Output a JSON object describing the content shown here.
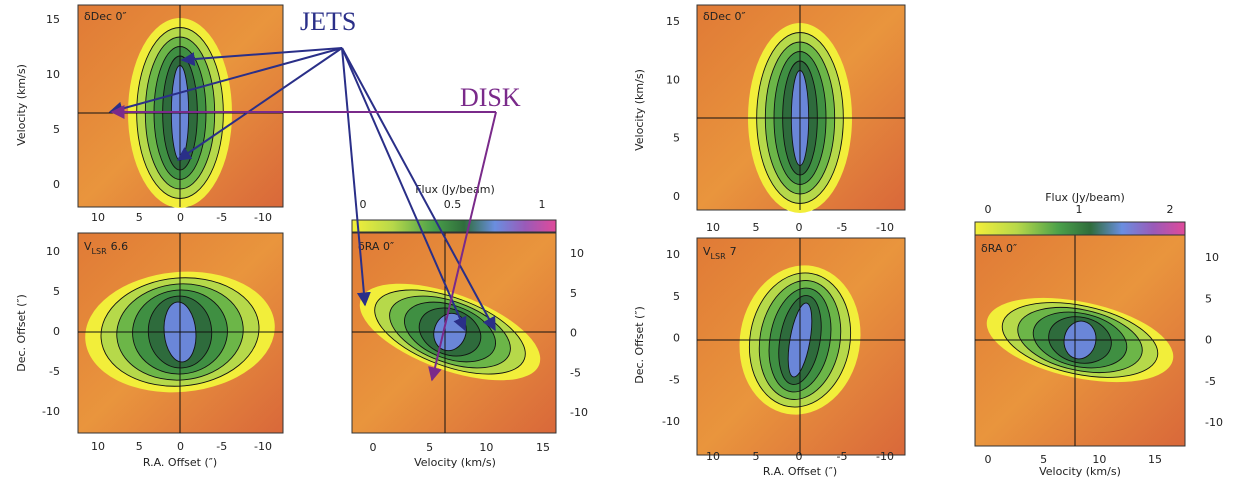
{
  "annotations": {
    "jets": "JETS",
    "disk": "DISK"
  },
  "figures": [
    {
      "pv_dec": {
        "label": "δDec 0″",
        "y_title": "Velocity (km/s)",
        "yticks": [
          15,
          10,
          5,
          0
        ],
        "xticks": [
          10,
          5,
          0,
          -5,
          -10
        ]
      },
      "map": {
        "label": "V",
        "label_sub": "LSR",
        "label_value": "6.6",
        "y_title": "Dec. Offset (″)",
        "x_title": "R.A. Offset (″)",
        "yticks": [
          10,
          5,
          0,
          -5,
          -10
        ],
        "xticks": [
          10,
          5,
          0,
          -5,
          -10
        ]
      },
      "pv_ra": {
        "label": "δRA 0″",
        "colorbar_title": "Flux (Jy/beam)",
        "colorbar_ticks": [
          0,
          0.5,
          1
        ],
        "yticks": [
          10,
          5,
          0,
          -5,
          -10
        ],
        "xticks": [
          0,
          5,
          10,
          15
        ],
        "x_title": "Velocity (km/s)"
      }
    },
    {
      "pv_dec": {
        "label": "δDec 0″",
        "y_title": "Velocity (km/s)",
        "yticks": [
          15,
          10,
          5,
          0
        ],
        "xticks": [
          10,
          5,
          0,
          -5,
          -10
        ]
      },
      "map": {
        "label": "V",
        "label_sub": "LSR",
        "label_value": "7",
        "y_title": "Dec. Offset (″)",
        "x_title": "R.A. Offset (″)",
        "yticks": [
          10,
          5,
          0,
          -5,
          -10
        ],
        "xticks": [
          10,
          5,
          0,
          -5,
          -10
        ]
      },
      "pv_ra": {
        "label": "δRA 0″",
        "colorbar_title": "Flux (Jy/beam)",
        "colorbar_ticks": [
          0,
          1,
          2
        ],
        "yticks": [
          10,
          5,
          0,
          -5,
          -10
        ],
        "xticks": [
          0,
          5,
          10,
          15
        ],
        "x_title": "Velocity (km/s)"
      }
    }
  ]
}
